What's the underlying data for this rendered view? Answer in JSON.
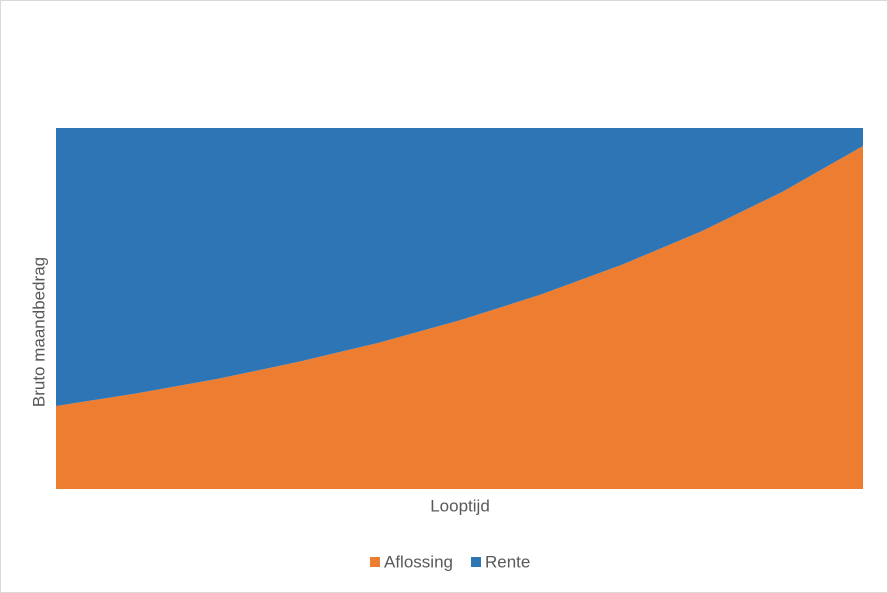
{
  "chart_data": {
    "type": "stacked-area",
    "x_label": "Looptijd",
    "y_label": "Bruto maandbedrag",
    "categories": [
      null,
      null,
      null,
      null,
      null,
      null,
      null,
      null,
      null,
      null,
      null
    ],
    "series": [
      {
        "name": "Aflossing",
        "color": "#ed7d31",
        "values": [
          23,
          26.5,
          30.5,
          35.2,
          40.5,
          46.7,
          53.8,
          62,
          71.4,
          82.3,
          95
        ]
      },
      {
        "name": "Rente",
        "color": "#2e75b6",
        "values": [
          77,
          73.5,
          69.5,
          64.8,
          59.5,
          53.3,
          46.2,
          38,
          28.6,
          17.7,
          5
        ]
      }
    ],
    "ylim": [
      0,
      100
    ],
    "legend": "bottom"
  }
}
